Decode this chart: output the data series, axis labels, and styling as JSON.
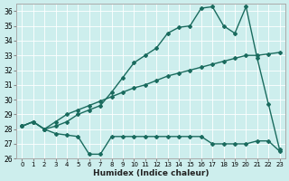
{
  "xlabel": "Humidex (Indice chaleur)",
  "background_color": "#cdeeed",
  "grid_color": "#b8ddd8",
  "line_color": "#1a6b5e",
  "xlim": [
    -0.5,
    23.5
  ],
  "ylim": [
    26,
    36.5
  ],
  "xticks": [
    0,
    1,
    2,
    3,
    4,
    5,
    6,
    7,
    8,
    9,
    10,
    11,
    12,
    13,
    14,
    15,
    16,
    17,
    18,
    19,
    20,
    21,
    22,
    23
  ],
  "yticks": [
    26,
    27,
    28,
    29,
    30,
    31,
    32,
    33,
    34,
    35,
    36
  ],
  "series1_x": [
    0,
    1,
    2,
    3,
    4,
    5,
    6,
    7,
    8,
    9,
    10,
    11,
    12,
    13,
    14,
    15,
    16,
    17,
    18,
    19,
    20,
    21,
    22,
    23
  ],
  "series1_y": [
    28.2,
    28.5,
    28.0,
    27.7,
    27.6,
    27.5,
    26.3,
    26.3,
    27.5,
    27.5,
    27.5,
    27.5,
    27.5,
    27.5,
    27.5,
    27.5,
    27.5,
    27.0,
    27.0,
    27.0,
    27.0,
    27.2,
    27.2,
    26.5
  ],
  "series2_x": [
    0,
    1,
    2,
    3,
    4,
    5,
    6,
    7,
    8,
    9,
    10,
    11,
    12,
    13,
    14,
    15,
    16,
    17,
    18,
    19,
    20,
    21,
    22,
    23
  ],
  "series2_y": [
    28.2,
    28.5,
    28.0,
    28.5,
    29.0,
    29.3,
    29.6,
    29.9,
    30.2,
    30.5,
    30.8,
    31.0,
    31.3,
    31.6,
    31.8,
    32.0,
    32.2,
    32.4,
    32.6,
    32.8,
    33.0,
    33.0,
    33.1,
    33.2
  ],
  "series3_x": [
    0,
    1,
    2,
    3,
    4,
    5,
    6,
    7,
    8,
    9,
    10,
    11,
    12,
    13,
    14,
    15,
    16,
    17,
    18,
    19,
    20,
    21,
    22,
    23
  ],
  "series3_y": [
    28.2,
    28.5,
    28.0,
    28.2,
    28.5,
    29.0,
    29.3,
    29.6,
    30.5,
    31.5,
    32.5,
    33.0,
    33.5,
    34.5,
    34.9,
    35.0,
    36.2,
    36.3,
    35.0,
    34.5,
    36.3,
    32.8,
    29.7,
    26.6
  ]
}
